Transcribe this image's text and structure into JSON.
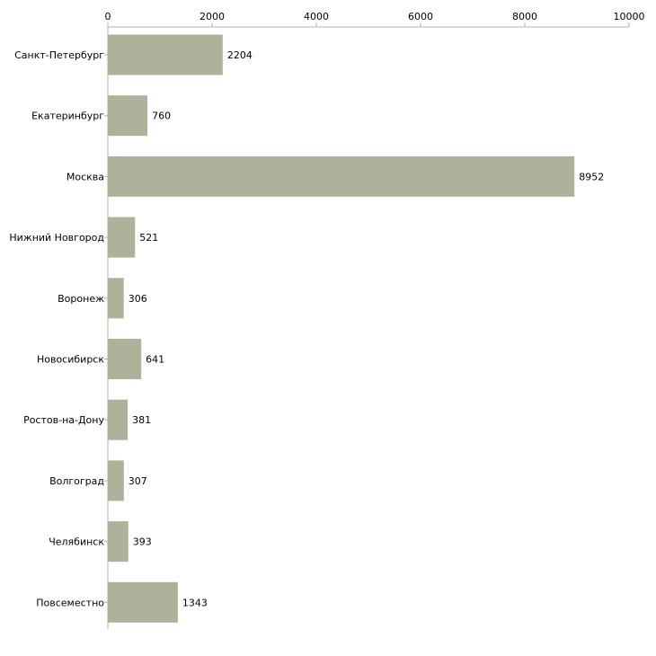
{
  "chart_data": {
    "type": "bar",
    "orientation": "horizontal",
    "title": "",
    "xlabel": "",
    "ylabel": "",
    "xlim": [
      0,
      10000
    ],
    "ticks": [
      0,
      2000,
      4000,
      6000,
      8000,
      10000
    ],
    "tick_labels": [
      "0",
      "2000",
      "4000",
      "6000",
      "8000",
      "10000"
    ],
    "categories": [
      "Санкт-Петербург",
      "Екатеринбург",
      "Москва",
      "Нижний Новгород",
      "Воронеж",
      "Новосибирск",
      "Ростов-на-Дону",
      "Волгоград",
      "Челябинск",
      "Повсеместно"
    ],
    "values": [
      2204,
      760,
      8952,
      521,
      306,
      641,
      381,
      307,
      393,
      1343
    ],
    "value_labels": [
      "2204",
      "760",
      "8952",
      "521",
      "306",
      "641",
      "381",
      "307",
      "393",
      "1343"
    ],
    "grid": false,
    "legend": "none",
    "bar_color": "#adb39a",
    "axis_color": "#b0b0b0"
  }
}
